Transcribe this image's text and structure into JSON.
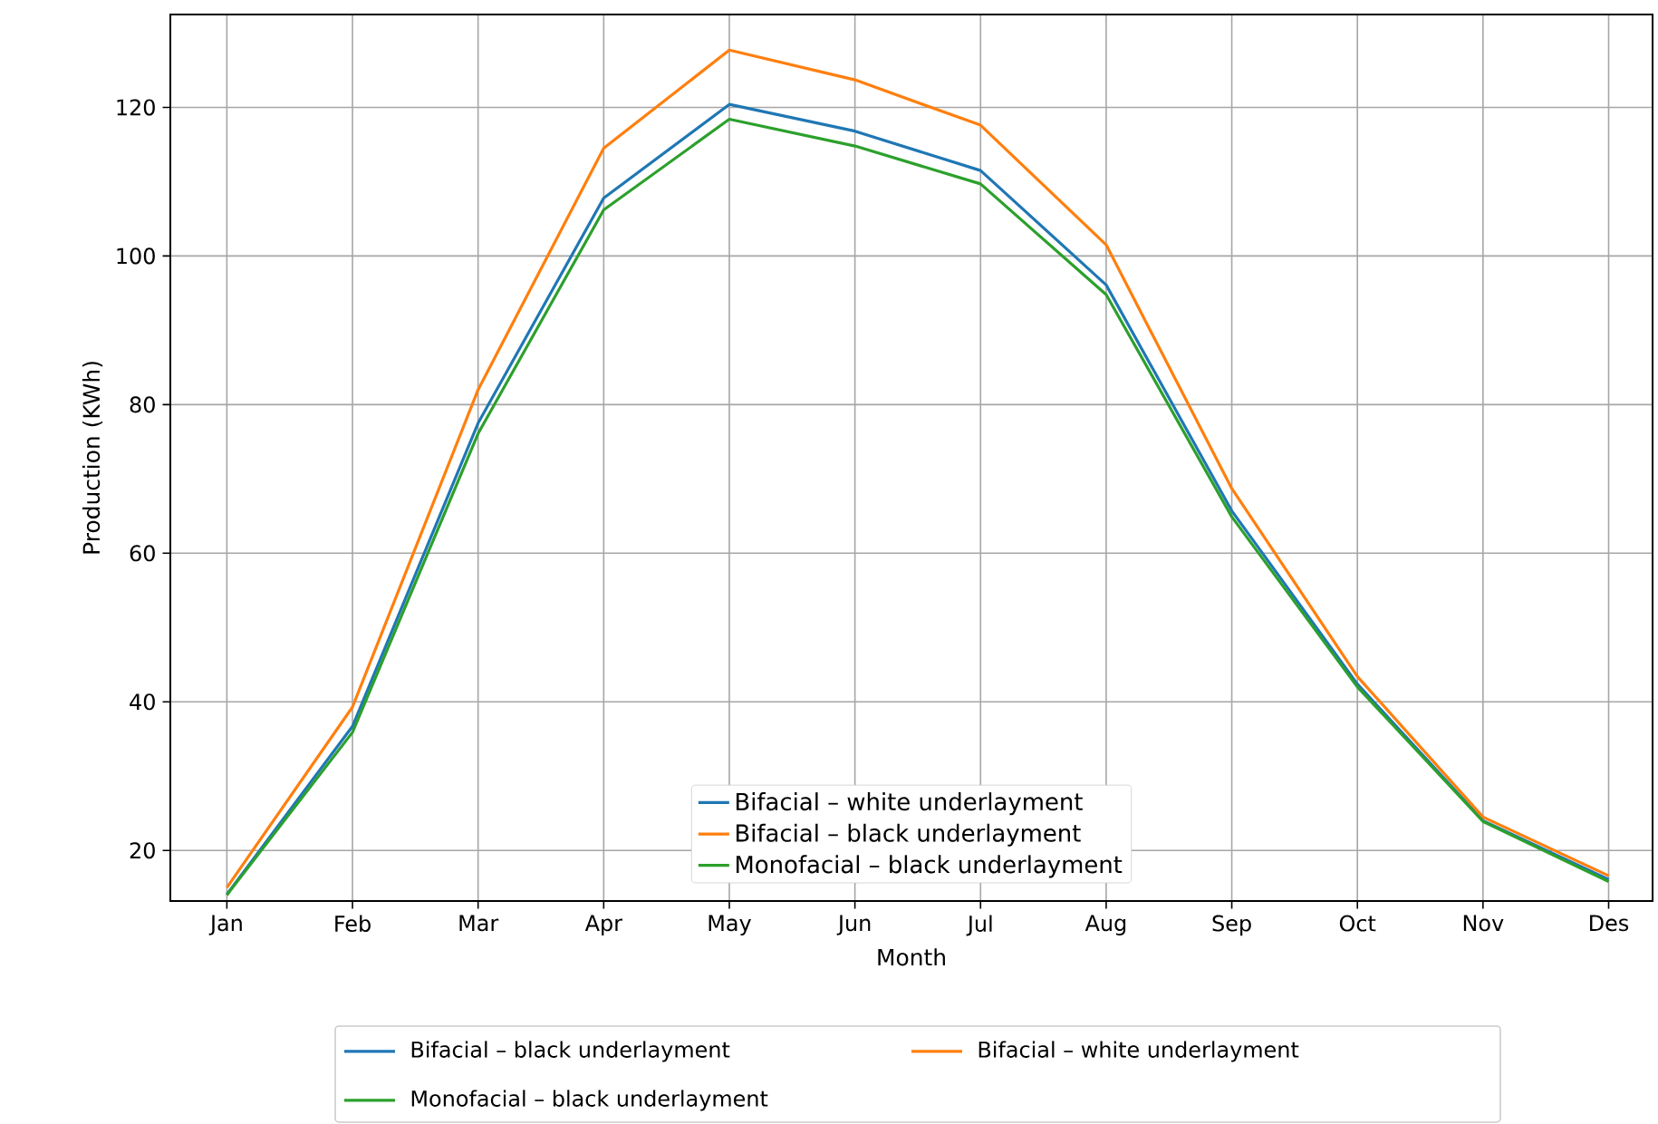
{
  "chart_data": {
    "type": "line",
    "xlabel": "Month",
    "ylabel": "Production (KWh)",
    "categories": [
      "Jan",
      "Feb",
      "Mar",
      "Apr",
      "May",
      "Jun",
      "Jul",
      "Aug",
      "Sep",
      "Oct",
      "Nov",
      "Des"
    ],
    "series": [
      {
        "name": "Bifacial – white underlayment",
        "color": "#1f77b4",
        "values": [
          14.1,
          36.7,
          77.5,
          107.8,
          120.4,
          116.8,
          111.5,
          96.1,
          65.7,
          42.4,
          24.0,
          16.1
        ]
      },
      {
        "name": "Bifacial – black underlayment",
        "color": "#ff7f0e",
        "values": [
          15.0,
          39.3,
          82.0,
          114.5,
          127.7,
          123.7,
          117.6,
          101.5,
          68.7,
          43.4,
          24.5,
          16.6
        ]
      },
      {
        "name": "Monofacial – black underlayment",
        "color": "#2ca02c",
        "values": [
          14.0,
          35.9,
          76.1,
          106.2,
          118.4,
          114.8,
          109.7,
          94.8,
          64.9,
          42.0,
          23.9,
          15.8
        ]
      }
    ],
    "ylim": [
      13.2,
      132.5
    ],
    "yticks": [
      20,
      40,
      60,
      80,
      100,
      120
    ],
    "grid": true,
    "legend": "bottom",
    "line_style": "solid",
    "marker": "none",
    "annotations": [
      "Bifacial – black underlayment",
      "Bifacial – white underlayment",
      "Monofacial – black underlayment"
    ]
  }
}
